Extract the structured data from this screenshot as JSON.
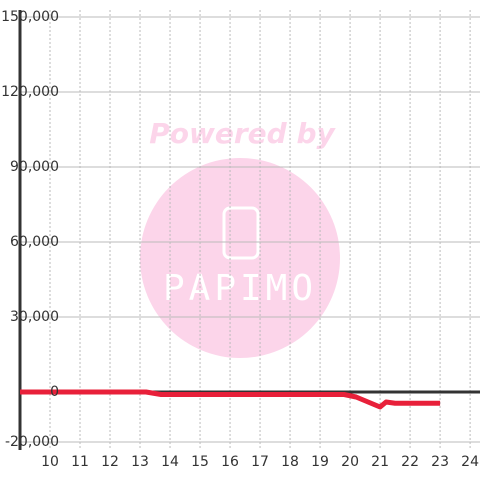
{
  "chart_data": {
    "type": "line",
    "x": [
      9,
      13.2,
      13.7,
      19.8,
      20.2,
      20.8,
      21.0,
      21.2,
      21.5,
      23.0
    ],
    "series": [
      {
        "color": "#e8203a",
        "values": [
          0,
          0,
          -1000,
          -1000,
          -2000,
          -5000,
          -6000,
          -4000,
          -4500,
          -4500
        ]
      }
    ],
    "xlim": [
      9,
      24.33
    ],
    "ylim": [
      -20000,
      150000
    ],
    "xticks": [
      10,
      11,
      12,
      13,
      14,
      15,
      16,
      17,
      18,
      19,
      20,
      21,
      22,
      23,
      24
    ],
    "yticks": [
      {
        "value": -20000,
        "label": "-20,000"
      },
      0,
      {
        "value": 30000,
        "label": "30,000"
      },
      {
        "value": 60000,
        "label": "60,000"
      },
      {
        "value": 90000,
        "label": "90,000"
      },
      {
        "value": 120000,
        "label": "120,000"
      },
      {
        "value": 150000,
        "label": "150,000"
      }
    ],
    "grid": true,
    "watermark": {
      "line1": "Powered by",
      "logo": "PAPIMO"
    }
  }
}
